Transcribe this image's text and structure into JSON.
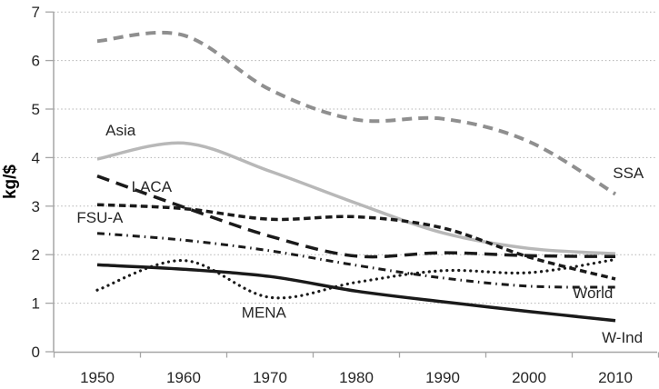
{
  "chart_data": {
    "type": "line",
    "title": "",
    "xlabel": "",
    "ylabel": "kg/$",
    "x": [
      1950,
      1960,
      1970,
      1980,
      1990,
      2000,
      2010
    ],
    "x_tick_labels": [
      "1950",
      "1960",
      "1970",
      "1980",
      "1990",
      "2000",
      "2010"
    ],
    "y_ticks": [
      0,
      1,
      2,
      3,
      4,
      5,
      6,
      7
    ],
    "ylim": [
      0,
      7
    ],
    "xlim_years": [
      1945,
      2015
    ],
    "grid": "horizontal dotted gridlines at each integer",
    "legend_position": "inline labels next to lines",
    "series": [
      {
        "name": "SSA",
        "color": "#8f8f8f",
        "style": "dashed",
        "width": 4,
        "values": [
          6.4,
          6.52,
          5.4,
          4.78,
          4.8,
          4.33,
          3.25
        ]
      },
      {
        "name": "Asia",
        "color": "#b8b8b8",
        "style": "solid",
        "width": 3.5,
        "values": [
          3.97,
          4.3,
          3.72,
          3.06,
          2.45,
          2.13,
          2.02
        ]
      },
      {
        "name": "LACA",
        "color": "#1a1a1a",
        "style": "long-dash",
        "width": 3.5,
        "values": [
          3.62,
          2.98,
          2.38,
          1.97,
          2.04,
          1.98,
          1.96
        ]
      },
      {
        "name": "FSU-A",
        "color": "#1a1a1a",
        "style": "dash",
        "width": 3.5,
        "values": [
          3.03,
          2.95,
          2.73,
          2.78,
          2.55,
          1.95,
          1.5
        ]
      },
      {
        "name": "World",
        "color": "#1a1a1a",
        "style": "dash-dot",
        "width": 3,
        "values": [
          2.44,
          2.3,
          2.08,
          1.78,
          1.52,
          1.35,
          1.33
        ]
      },
      {
        "name": "MENA",
        "color": "#1a1a1a",
        "style": "dotted",
        "width": 3.2,
        "values": [
          1.27,
          1.88,
          1.12,
          1.43,
          1.67,
          1.63,
          1.9
        ]
      },
      {
        "name": "W-Ind",
        "color": "#1a1a1a",
        "style": "solid",
        "width": 3.5,
        "values": [
          1.79,
          1.7,
          1.55,
          1.25,
          1.03,
          0.83,
          0.64
        ]
      }
    ],
    "annotations": [
      {
        "text": "Asia",
        "year": 1952.7,
        "value": 4.57
      },
      {
        "text": "LACA",
        "year": 1956.3,
        "value": 3.41
      },
      {
        "text": "FSU-A",
        "year": 1950.3,
        "value": 2.77
      },
      {
        "text": "MENA",
        "year": 1969.3,
        "value": 0.81
      },
      {
        "text": "World",
        "year": 2007.4,
        "value": 1.22
      },
      {
        "text": "W-Ind",
        "year": 2010.8,
        "value": 0.3
      },
      {
        "text": "SSA",
        "year": 2011.5,
        "value": 3.69
      }
    ],
    "colors": {
      "gridline": "#b3b3b3",
      "axis": "#a6a6a6",
      "tick_text": "#262626",
      "label_text": "#262626",
      "background": "#ffffff"
    }
  }
}
